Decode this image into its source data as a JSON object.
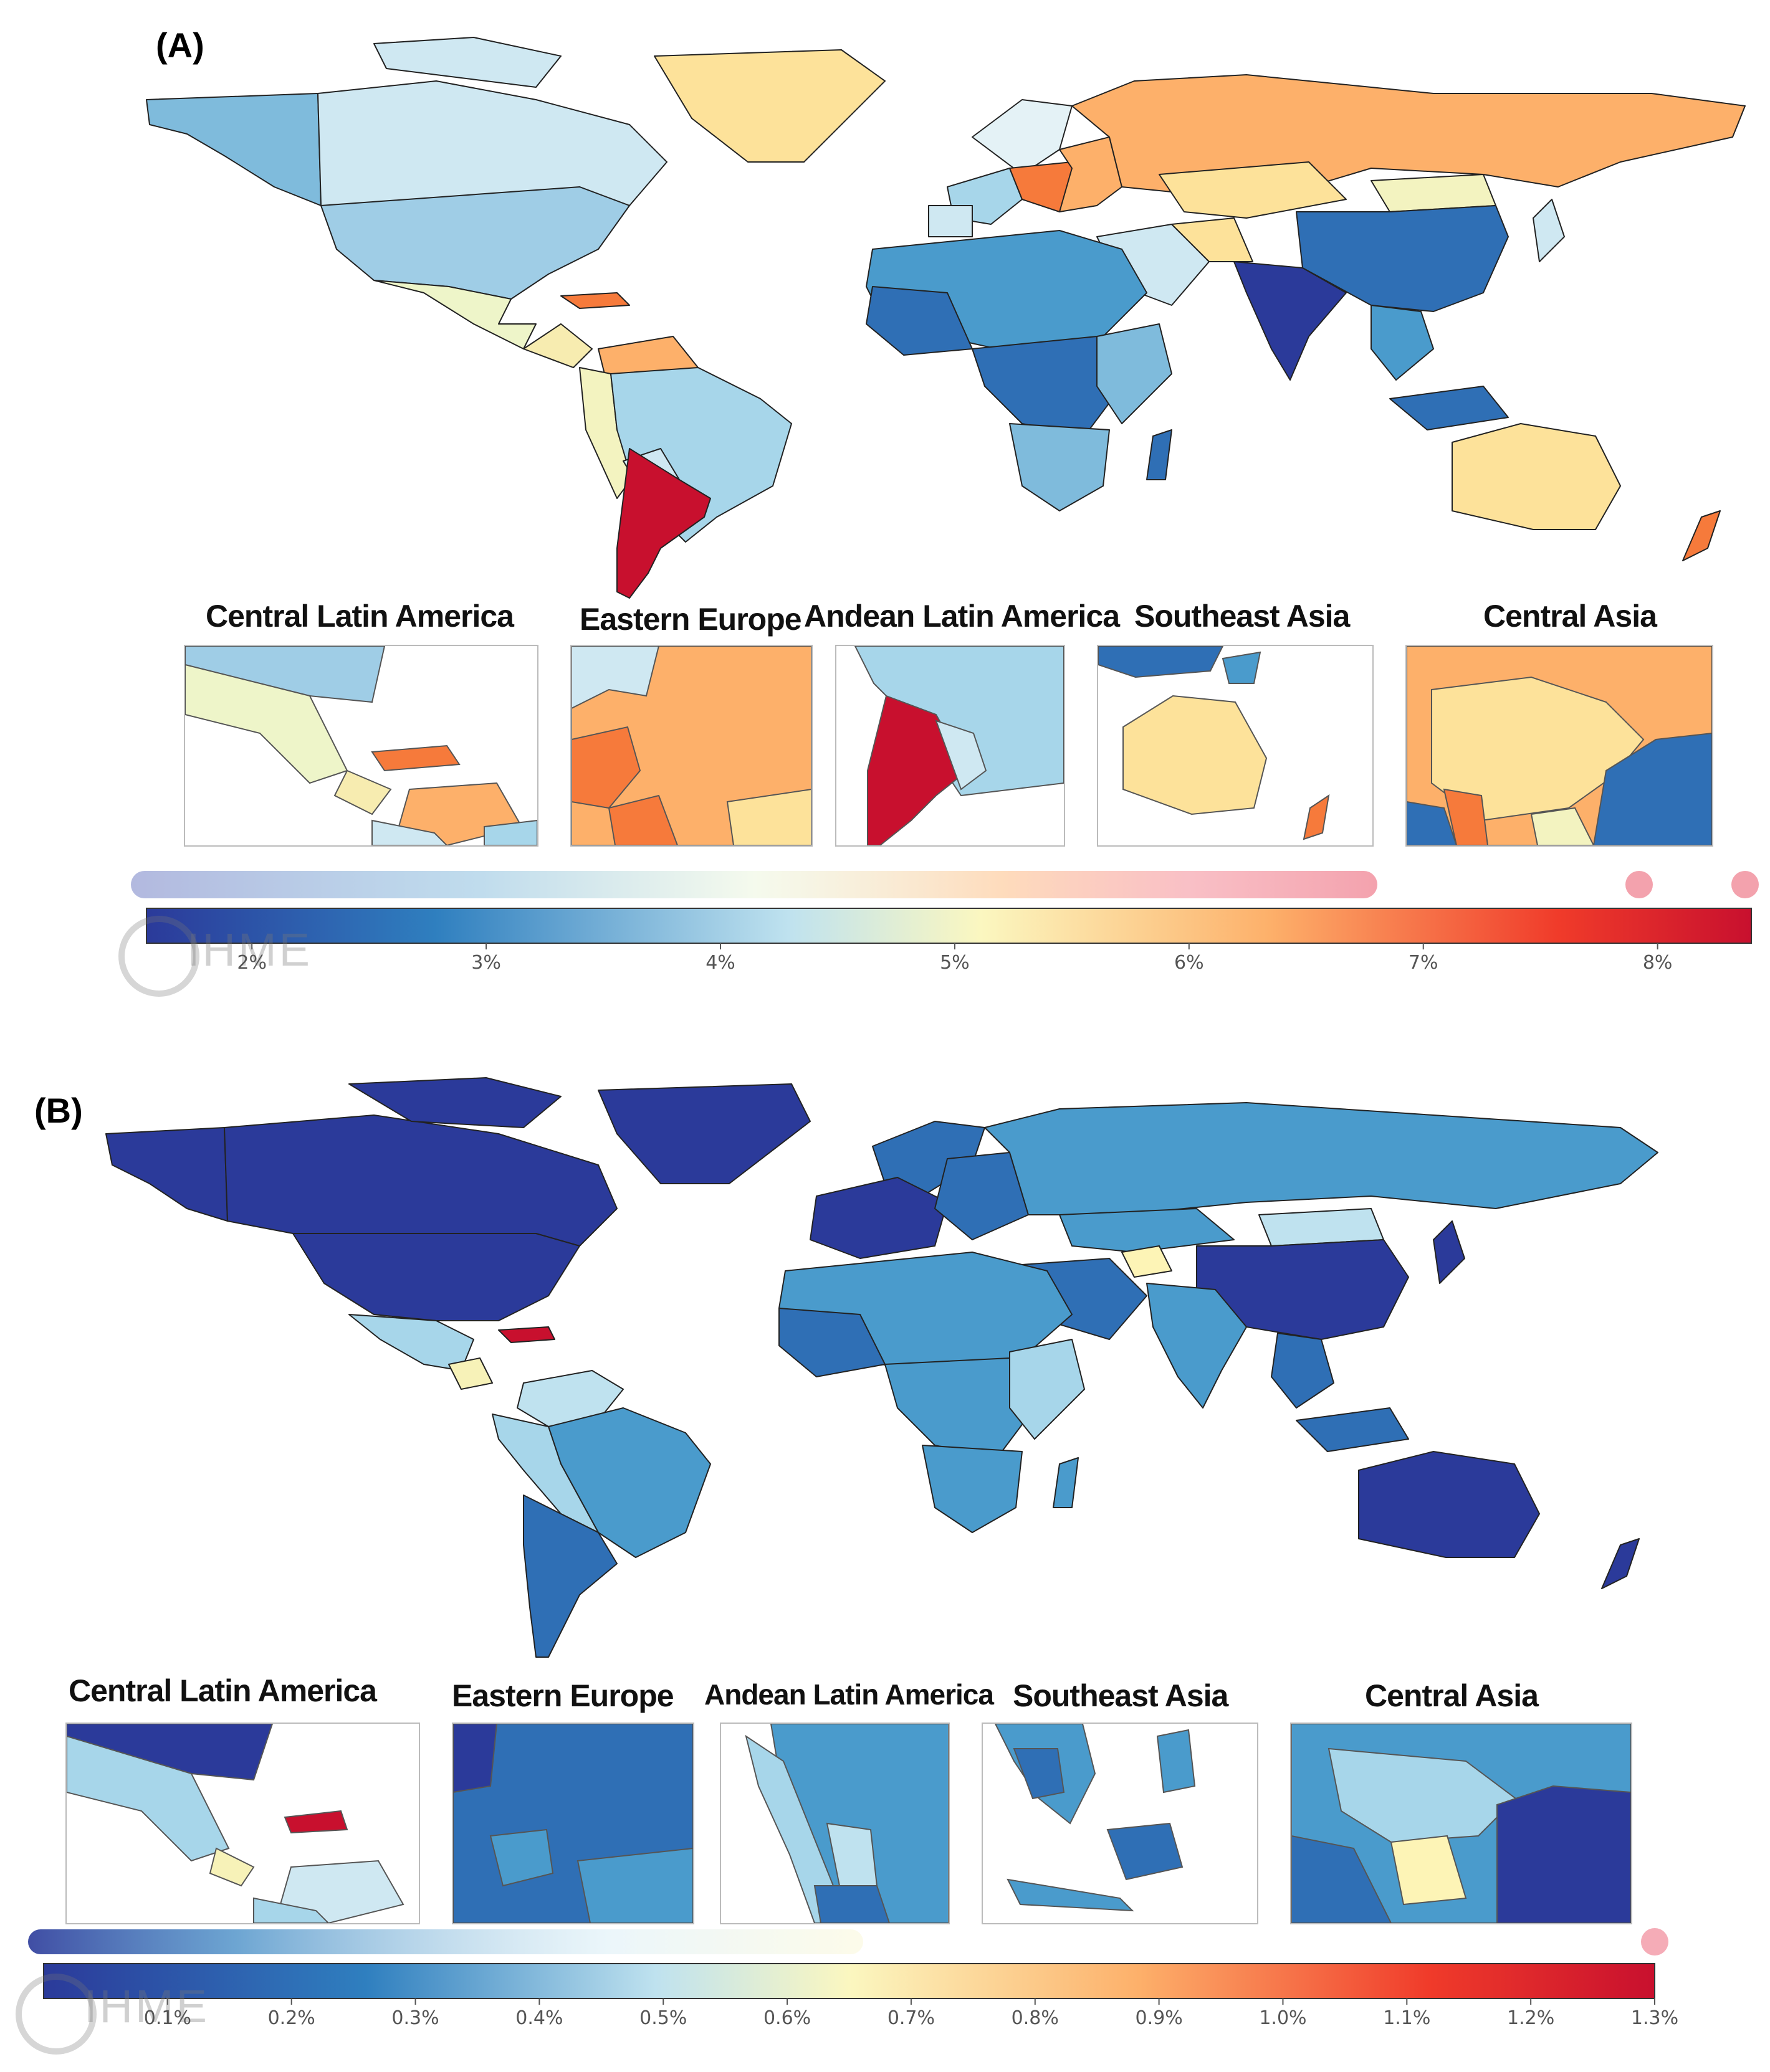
{
  "figure_a": {
    "label": "(A)",
    "insets": [
      {
        "title": "Central Latin America"
      },
      {
        "title": "Eastern Europe"
      },
      {
        "title": "Andean Latin America"
      },
      {
        "title": "Southeast Asia"
      },
      {
        "title": "Central Asia"
      }
    ],
    "legend": {
      "ticks": [
        "2%",
        "3%",
        "4%",
        "5%",
        "6%",
        "7%",
        "8%"
      ],
      "tick_values": [
        2,
        3,
        4,
        5,
        6,
        7,
        8
      ],
      "range": [
        1.55,
        8.4
      ],
      "watermark": "IHME"
    }
  },
  "figure_b": {
    "label": "(B)",
    "insets": [
      {
        "title": "Central Latin America"
      },
      {
        "title": "Eastern Europe"
      },
      {
        "title": "Andean Latin America"
      },
      {
        "title": "Southeast Asia"
      },
      {
        "title": "Central Asia"
      }
    ],
    "legend": {
      "ticks": [
        "0.1%",
        "0.2%",
        "0.3%",
        "0.4%",
        "0.5%",
        "0.6%",
        "0.7%",
        "0.8%",
        "0.9%",
        "1.0%",
        "1.1%",
        "1.2%",
        "1.3%"
      ],
      "tick_values": [
        0.1,
        0.2,
        0.3,
        0.4,
        0.5,
        0.6,
        0.7,
        0.8,
        0.9,
        1.0,
        1.1,
        1.2,
        1.3
      ],
      "range": [
        0.0,
        1.3
      ],
      "watermark": "IHME"
    }
  },
  "colors": {
    "dark_blue": "#2b3a9a",
    "mid_blue": "#2f6fb5",
    "blue": "#4a9bcc",
    "light_blue": "#a7d6ea",
    "pale_blue": "#d6ecf3",
    "pale_yellow": "#f7f7c6",
    "light_yellow": "#fde29a",
    "orange": "#fdb06a",
    "dark_orange": "#f67a3b",
    "red": "#c8102e",
    "ocean": "#ffffff",
    "border": "#222222"
  }
}
